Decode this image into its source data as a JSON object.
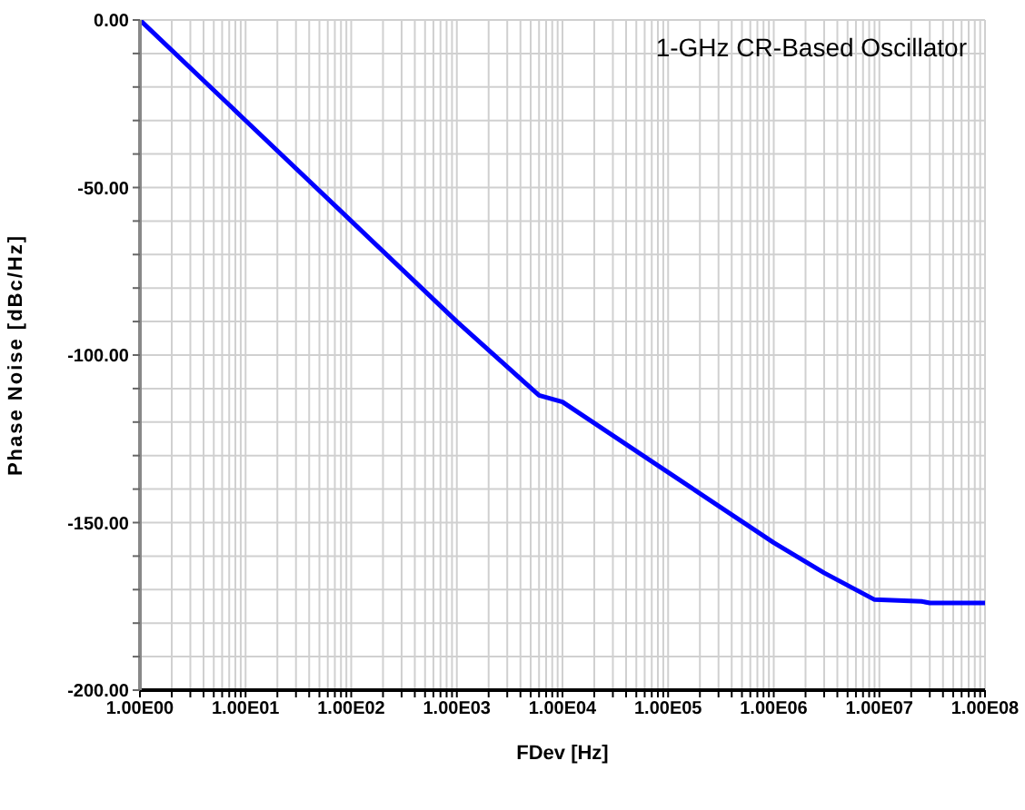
{
  "chart_data": {
    "type": "line",
    "title": "1-GHz CR-Based Oscillator",
    "xlabel": "FDev [Hz]",
    "ylabel": "Phase Noise [dBc/Hz]",
    "log": "x",
    "x": [
      1,
      10,
      100,
      1000,
      6000,
      10000,
      100000,
      1000000,
      3000000,
      9000000,
      25000000,
      30000000,
      100000000
    ],
    "series": [
      {
        "color": "#0000ff",
        "values": [
          0,
          -30,
          -60,
          -90,
          -112,
          -114,
          -135,
          -156,
          -165,
          -173,
          -173.5,
          -174,
          -174
        ]
      }
    ],
    "xlim": [
      1,
      100000000
    ],
    "xticks": [
      {
        "value": 1,
        "label": "1.00E00"
      },
      {
        "value": 10,
        "label": "1.00E01"
      },
      {
        "value": 100,
        "label": "1.00E02"
      },
      {
        "value": 1000,
        "label": "1.00E03"
      },
      {
        "value": 10000,
        "label": "1.00E04"
      },
      {
        "value": 100000,
        "label": "1.00E05"
      },
      {
        "value": 1000000,
        "label": "1.00E06"
      },
      {
        "value": 10000000,
        "label": "1.00E07"
      },
      {
        "value": 100000000,
        "label": "1.00E08"
      }
    ],
    "ylim": [
      -200,
      0
    ],
    "yticks": [
      {
        "value": 0,
        "label": "0.00"
      },
      {
        "value": -10,
        "label": null
      },
      {
        "value": -20,
        "label": null
      },
      {
        "value": -30,
        "label": null
      },
      {
        "value": -40,
        "label": null
      },
      {
        "value": -50,
        "label": "-50.00"
      },
      {
        "value": -60,
        "label": null
      },
      {
        "value": -70,
        "label": null
      },
      {
        "value": -80,
        "label": null
      },
      {
        "value": -90,
        "label": null
      },
      {
        "value": -100,
        "label": "-100.00"
      },
      {
        "value": -110,
        "label": null
      },
      {
        "value": -120,
        "label": null
      },
      {
        "value": -130,
        "label": null
      },
      {
        "value": -140,
        "label": null
      },
      {
        "value": -150,
        "label": "-150.00"
      },
      {
        "value": -160,
        "label": null
      },
      {
        "value": -170,
        "label": null
      },
      {
        "value": -180,
        "label": null
      },
      {
        "value": -190,
        "label": null
      },
      {
        "value": -200,
        "label": "-200.00"
      }
    ],
    "grid": true,
    "legend": false,
    "marker": "none",
    "line_style": "solid"
  }
}
